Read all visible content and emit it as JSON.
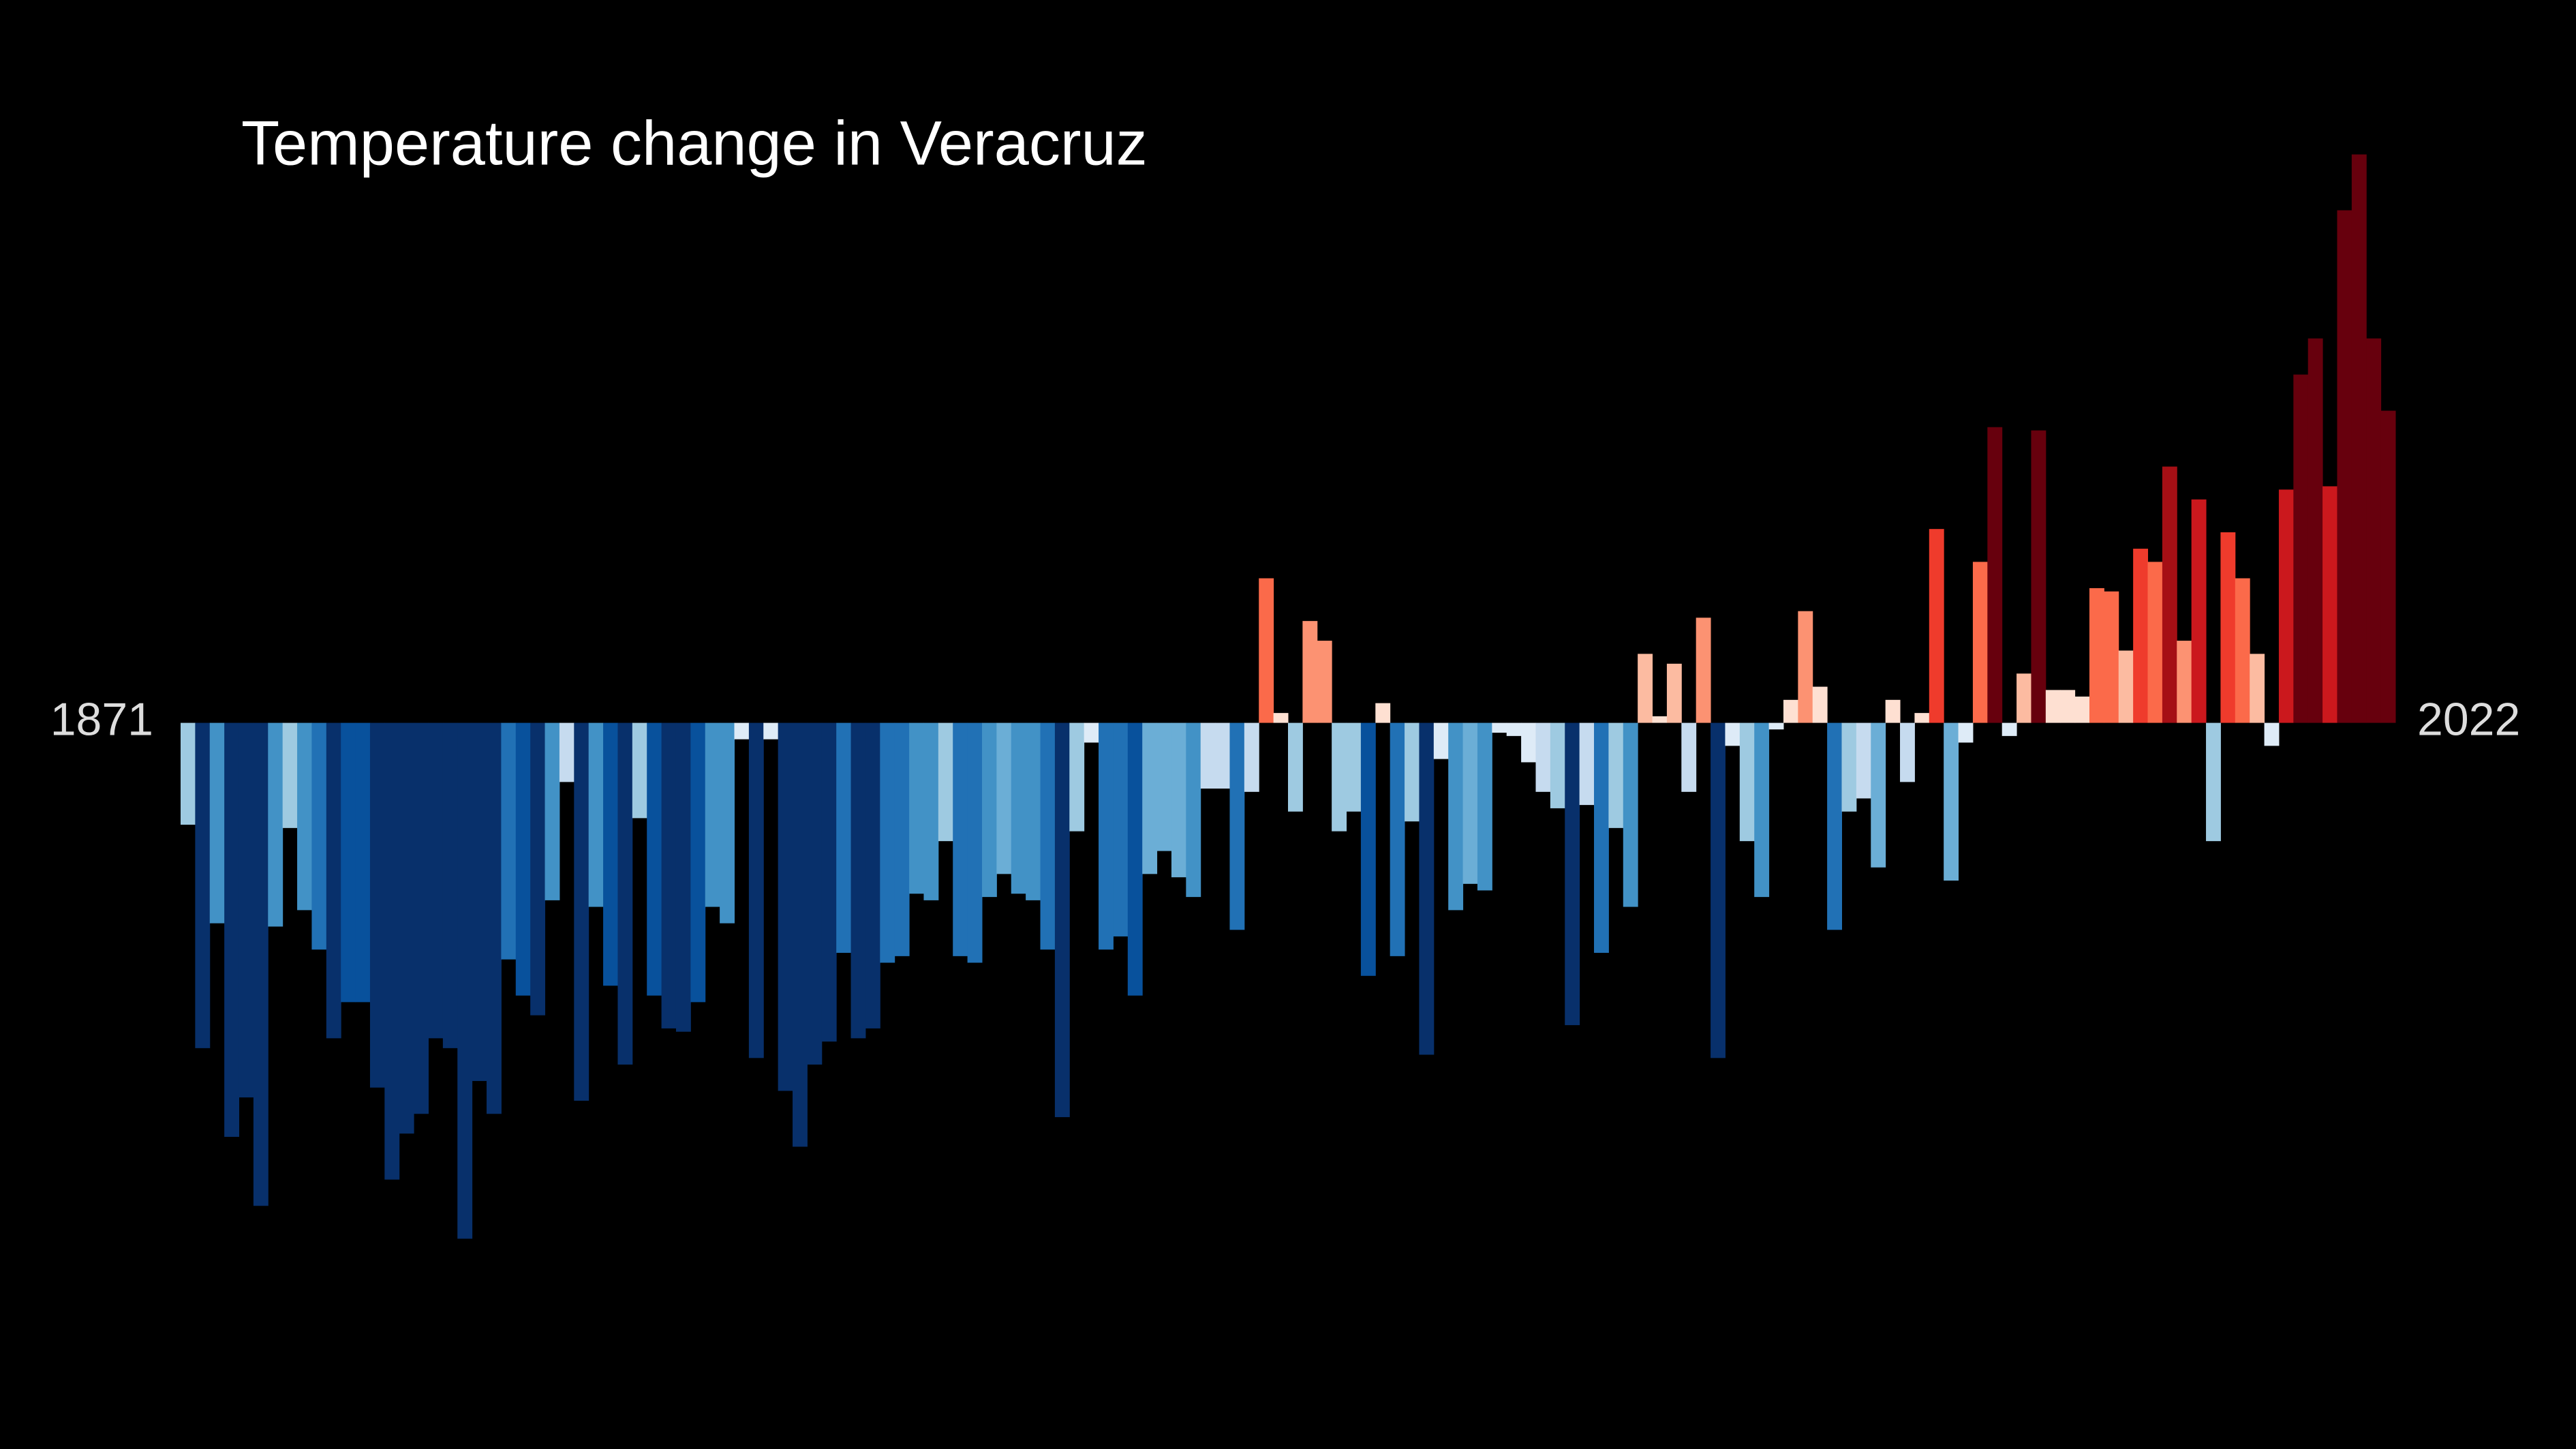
{
  "chart_data": {
    "type": "bar",
    "title": "Temperature change in Veracruz",
    "categories": [
      "1871",
      null,
      null,
      null,
      null,
      null,
      null,
      null,
      null,
      null,
      null,
      null,
      null,
      null,
      null,
      null,
      null,
      null,
      null,
      null,
      null,
      null,
      null,
      null,
      null,
      null,
      null,
      null,
      null,
      null,
      null,
      null,
      null,
      null,
      null,
      null,
      null,
      null,
      null,
      null,
      null,
      null,
      null,
      null,
      null,
      null,
      null,
      null,
      null,
      null,
      null,
      null,
      null,
      null,
      null,
      null,
      null,
      null,
      null,
      null,
      null,
      null,
      null,
      null,
      null,
      null,
      null,
      null,
      null,
      null,
      null,
      null,
      null,
      null,
      null,
      null,
      null,
      null,
      null,
      null,
      null,
      null,
      null,
      null,
      null,
      null,
      null,
      null,
      null,
      null,
      null,
      null,
      null,
      null,
      null,
      null,
      null,
      null,
      null,
      null,
      null,
      null,
      null,
      null,
      null,
      null,
      null,
      null,
      null,
      null,
      null,
      null,
      null,
      null,
      null,
      null,
      null,
      null,
      null,
      null,
      null,
      null,
      null,
      null,
      null,
      null,
      null,
      null,
      null,
      null,
      null,
      null,
      null,
      null,
      null,
      null,
      null,
      null,
      null,
      null,
      null,
      null,
      null,
      null,
      null,
      null,
      null,
      null,
      null,
      null,
      null,
      "2022"
    ],
    "values": [
      -0.31,
      -0.99,
      -0.61,
      -1.26,
      -1.14,
      -1.47,
      -0.62,
      -0.32,
      -0.57,
      -0.69,
      -0.96,
      -0.85,
      -0.85,
      -1.11,
      -1.39,
      -1.25,
      -1.19,
      -0.96,
      -0.99,
      -1.57,
      -1.09,
      -1.19,
      -0.72,
      -0.83,
      -0.89,
      -0.54,
      -0.18,
      -1.15,
      -0.56,
      -0.8,
      -1.04,
      -0.29,
      -0.83,
      -0.93,
      -0.94,
      -0.85,
      -0.56,
      -0.61,
      -0.05,
      -1.02,
      -0.05,
      -1.12,
      -1.29,
      -1.04,
      -0.97,
      -0.7,
      -0.96,
      -0.93,
      -0.73,
      -0.71,
      -0.52,
      -0.54,
      -0.36,
      -0.71,
      -0.73,
      -0.53,
      -0.46,
      -0.52,
      -0.54,
      -0.69,
      -1.2,
      -0.33,
      -0.06,
      -0.69,
      -0.65,
      -0.83,
      -0.46,
      -0.39,
      -0.47,
      -0.53,
      -0.2,
      -0.2,
      -0.63,
      -0.21,
      0.44,
      0.03,
      -0.27,
      0.31,
      0.25,
      -0.33,
      -0.27,
      -0.77,
      0.06,
      -0.71,
      -0.3,
      -1.01,
      -0.11,
      -0.57,
      -0.49,
      -0.51,
      -0.03,
      -0.04,
      -0.12,
      -0.21,
      -0.26,
      -0.92,
      -0.25,
      -0.7,
      -0.32,
      -0.56,
      0.21,
      0.02,
      0.18,
      -0.21,
      0.32,
      -1.02,
      -0.07,
      -0.36,
      -0.53,
      -0.02,
      0.07,
      0.34,
      0.11,
      -0.63,
      -0.27,
      -0.23,
      -0.44,
      0.07,
      -0.18,
      0.03,
      0.59,
      -0.48,
      -0.06,
      0.49,
      0.9,
      -0.04,
      0.15,
      0.89,
      0.1,
      0.1,
      0.08,
      0.41,
      0.4,
      0.22,
      0.53,
      0.49,
      0.78,
      0.25,
      0.68,
      -0.36,
      0.58,
      0.44,
      0.21,
      -0.07,
      0.71,
      1.06,
      1.17,
      0.72,
      1.56,
      1.73,
      1.17,
      0.95
    ],
    "ylim": [
      -2.21,
      2.2
    ],
    "colorscale": [
      "#08306b",
      "#08519c",
      "#2171b5",
      "#4292c6",
      "#6baed6",
      "#9ecae1",
      "#c6dbef",
      "#deebf7",
      "#fee0d2",
      "#fcbba1",
      "#fc9272",
      "#fb6a4a",
      "#ef3b2c",
      "#cb181d",
      "#a50f15",
      "#67000d"
    ],
    "color_limits": [
      -1.0,
      1.0
    ],
    "background": "#000000"
  }
}
